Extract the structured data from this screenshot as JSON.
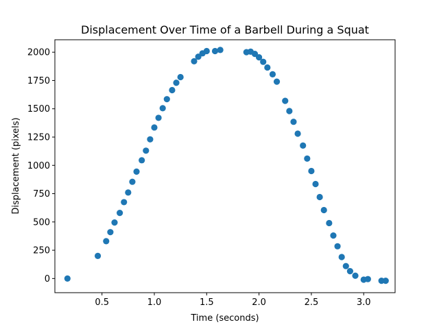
{
  "chart_data": {
    "type": "scatter",
    "title": "Displacement Over Time of a Barbell During a Squat",
    "xlabel": "Time (seconds)",
    "ylabel": "Displacement (pixels)",
    "xlim": [
      0.05,
      3.3
    ],
    "ylim": [
      -125,
      2110
    ],
    "xticks": [
      0.5,
      1.0,
      1.5,
      2.0,
      2.5,
      3.0
    ],
    "xtick_labels": [
      "0.5",
      "1.0",
      "1.5",
      "2.0",
      "2.5",
      "3.0"
    ],
    "yticks": [
      0,
      250,
      500,
      750,
      1000,
      1250,
      1500,
      1750,
      2000
    ],
    "ytick_labels": [
      "0",
      "250",
      "500",
      "750",
      "1000",
      "1250",
      "1500",
      "1750",
      "2000"
    ],
    "grid": false,
    "marker_color": "#1f77b4",
    "series": [
      {
        "x": [
          0.17,
          0.46,
          0.54,
          0.58,
          0.62,
          0.67,
          0.71,
          0.75,
          0.79,
          0.83,
          0.88,
          0.92,
          0.96,
          1.0,
          1.04,
          1.08,
          1.12,
          1.17,
          1.21,
          1.25,
          1.38,
          1.42,
          1.46,
          1.5,
          1.58,
          1.63,
          1.88,
          1.92,
          1.96,
          2.0,
          2.04,
          2.08,
          2.13,
          2.17,
          2.25,
          2.29,
          2.33,
          2.37,
          2.42,
          2.46,
          2.5,
          2.54,
          2.58,
          2.62,
          2.67,
          2.71,
          2.75,
          2.79,
          2.83,
          2.87,
          2.92,
          3.0,
          3.04,
          3.17,
          3.21
        ],
        "y": [
          0,
          200,
          330,
          410,
          495,
          580,
          675,
          760,
          855,
          945,
          1045,
          1130,
          1230,
          1335,
          1420,
          1505,
          1585,
          1665,
          1730,
          1780,
          1920,
          1960,
          1990,
          2010,
          2010,
          2020,
          2000,
          2005,
          1985,
          1955,
          1915,
          1865,
          1805,
          1740,
          1570,
          1480,
          1385,
          1280,
          1175,
          1060,
          950,
          835,
          720,
          605,
          490,
          380,
          285,
          190,
          110,
          65,
          25,
          -10,
          -5,
          -20,
          -20
        ]
      }
    ]
  }
}
